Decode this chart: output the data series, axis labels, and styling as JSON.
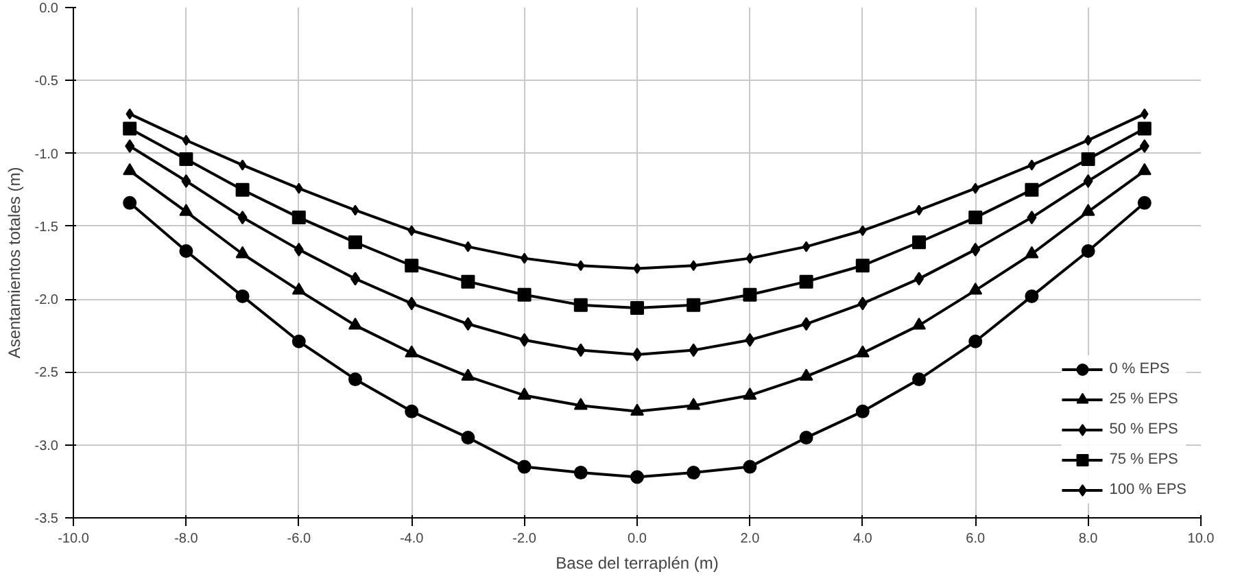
{
  "chart_data": {
    "type": "line",
    "xlabel": "Base del terraplén (m)",
    "ylabel": "Asentamientos totales (m)",
    "x": [
      -9,
      -8,
      -7,
      -6,
      -5,
      -4,
      -3,
      -2,
      -1,
      0,
      1,
      2,
      3,
      4,
      5,
      6,
      7,
      8,
      9
    ],
    "series": [
      {
        "name": "0 % EPS",
        "color": "#000000",
        "marker": "circle",
        "values": [
          -1.34,
          -1.67,
          -1.98,
          -2.29,
          -2.55,
          -2.77,
          -2.95,
          -3.15,
          -3.19,
          -3.22,
          -3.19,
          -3.15,
          -2.95,
          -2.77,
          -2.55,
          -2.29,
          -1.98,
          -1.67,
          -1.34
        ]
      },
      {
        "name": "25 % EPS",
        "color": "#000000",
        "marker": "triangle",
        "values": [
          -1.12,
          -1.4,
          -1.69,
          -1.94,
          -2.18,
          -2.37,
          -2.53,
          -2.66,
          -2.73,
          -2.77,
          -2.73,
          -2.66,
          -2.53,
          -2.37,
          -2.18,
          -1.94,
          -1.69,
          -1.4,
          -1.12
        ]
      },
      {
        "name": "50 % EPS",
        "color": "#000000",
        "marker": "diamond",
        "values": [
          -0.95,
          -1.19,
          -1.44,
          -1.66,
          -1.86,
          -2.03,
          -2.17,
          -2.28,
          -2.35,
          -2.38,
          -2.35,
          -2.28,
          -2.17,
          -2.03,
          -1.86,
          -1.66,
          -1.44,
          -1.19,
          -0.95
        ]
      },
      {
        "name": "75 % EPS",
        "color": "#000000",
        "marker": "square",
        "values": [
          -0.83,
          -1.04,
          -1.25,
          -1.44,
          -1.61,
          -1.77,
          -1.88,
          -1.97,
          -2.04,
          -2.06,
          -2.04,
          -1.97,
          -1.88,
          -1.77,
          -1.61,
          -1.44,
          -1.25,
          -1.04,
          -0.83
        ]
      },
      {
        "name": "100 % EPS",
        "color": "#000000",
        "marker": "diamond",
        "values": [
          -0.73,
          -0.91,
          -1.08,
          -1.24,
          -1.39,
          -1.53,
          -1.64,
          -1.72,
          -1.77,
          -1.79,
          -1.77,
          -1.72,
          -1.64,
          -1.53,
          -1.39,
          -1.24,
          -1.08,
          -0.91,
          -0.73
        ]
      }
    ],
    "xlim": [
      -10,
      10
    ],
    "xticks": [
      {
        "value": -10,
        "label": "-10.0"
      },
      {
        "value": -8,
        "label": "-8.0"
      },
      {
        "value": -6,
        "label": "-6.0"
      },
      {
        "value": -4,
        "label": "-4.0"
      },
      {
        "value": -2,
        "label": "-2.0"
      },
      {
        "value": 0,
        "label": "0.0"
      },
      {
        "value": 2,
        "label": "2.0"
      },
      {
        "value": 4,
        "label": "4.0"
      },
      {
        "value": 6,
        "label": "6.0"
      },
      {
        "value": 8,
        "label": "8.0"
      },
      {
        "value": 10,
        "label": "10.0"
      }
    ],
    "ylim": [
      -3.5,
      0
    ],
    "yticks": [
      {
        "value": -3.5,
        "label": "-3.5"
      },
      {
        "value": -3,
        "label": "-3.0"
      },
      {
        "value": -2.5,
        "label": "-2.5"
      },
      {
        "value": -2,
        "label": "-2.0"
      },
      {
        "value": -1.5,
        "label": "-1.5"
      },
      {
        "value": -1,
        "label": "-1.0"
      },
      {
        "value": -0.5,
        "label": "-0.5"
      },
      {
        "value": 0,
        "label": "0.0"
      }
    ],
    "grid": true,
    "legend": "bottom right",
    "line_style": "solid"
  }
}
